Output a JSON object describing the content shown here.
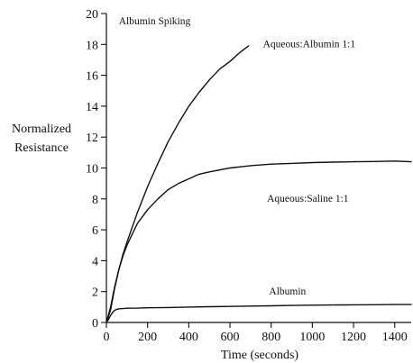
{
  "chart_data": {
    "type": "line",
    "title": "",
    "xlabel": "Time (seconds)",
    "ylabel": [
      "Normalized",
      "Resistance"
    ],
    "xlim": [
      0,
      1480
    ],
    "ylim": [
      0,
      20
    ],
    "xticks": [
      0,
      200,
      400,
      600,
      800,
      1000,
      1200,
      1400
    ],
    "yticks": [
      0,
      2,
      4,
      6,
      8,
      10,
      12,
      14,
      16,
      18,
      20
    ],
    "grid": false,
    "legend": "none",
    "annotations": [
      {
        "text": "Albumin Spiking",
        "x": 60,
        "y": 19.3
      },
      {
        "text": "Aqueous:Albumin 1:1",
        "x": 760,
        "y": 17.8
      },
      {
        "text": "Aqueous:Saline 1:1",
        "x": 780,
        "y": 7.8
      },
      {
        "text": "Albumin",
        "x": 790,
        "y": 1.8
      }
    ],
    "series": [
      {
        "id": "aqueous-albumin",
        "x": [
          0,
          20,
          40,
          60,
          80,
          100,
          150,
          200,
          250,
          300,
          350,
          400,
          450,
          500,
          550,
          600,
          650,
          680,
          690
        ],
        "y": [
          0,
          1.0,
          2.3,
          3.4,
          4.4,
          5.2,
          7.1,
          8.8,
          10.3,
          11.7,
          12.9,
          14.0,
          14.9,
          15.7,
          16.4,
          16.9,
          17.5,
          17.8,
          17.9
        ]
      },
      {
        "id": "aqueous-saline",
        "x": [
          0,
          20,
          40,
          60,
          80,
          100,
          150,
          200,
          250,
          300,
          350,
          400,
          450,
          500,
          600,
          700,
          800,
          900,
          1000,
          1100,
          1200,
          1300,
          1400,
          1480
        ],
        "y": [
          0,
          0.8,
          2.2,
          3.4,
          4.3,
          5.0,
          6.4,
          7.3,
          8.0,
          8.6,
          9.0,
          9.3,
          9.6,
          9.75,
          10.0,
          10.15,
          10.25,
          10.3,
          10.35,
          10.38,
          10.4,
          10.42,
          10.45,
          10.4
        ]
      },
      {
        "id": "albumin",
        "x": [
          0,
          10,
          20,
          30,
          40,
          50,
          60,
          80,
          100,
          150,
          200,
          300,
          400,
          500,
          600,
          700,
          800,
          900,
          1000,
          1100,
          1200,
          1300,
          1400,
          1480
        ],
        "y": [
          0,
          0.2,
          0.45,
          0.65,
          0.78,
          0.85,
          0.88,
          0.9,
          0.92,
          0.93,
          0.95,
          0.97,
          1.0,
          1.02,
          1.04,
          1.06,
          1.08,
          1.1,
          1.12,
          1.13,
          1.14,
          1.15,
          1.16,
          1.16
        ]
      }
    ]
  }
}
